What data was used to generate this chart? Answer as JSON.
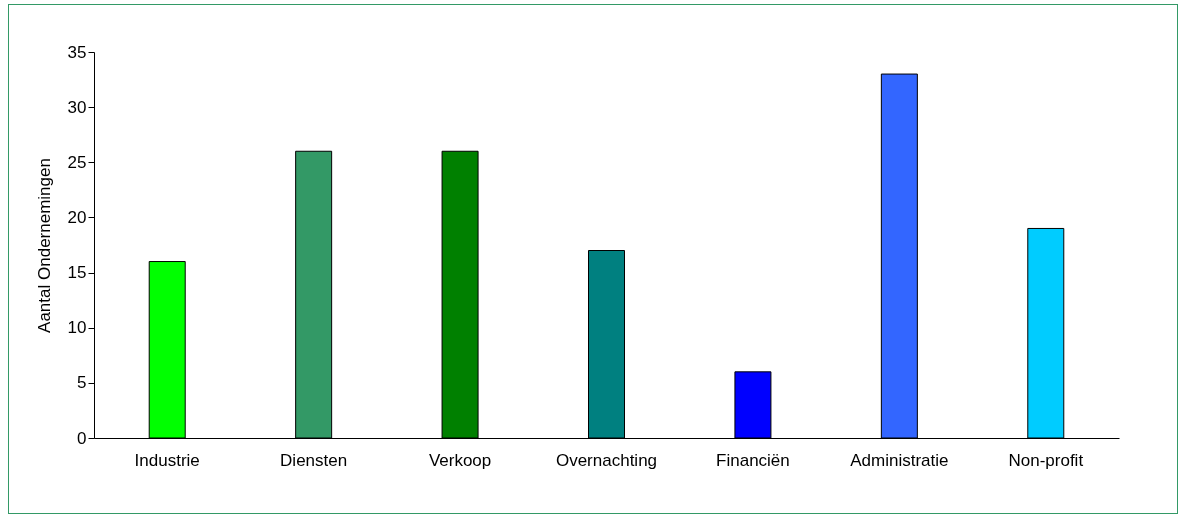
{
  "chart_data": {
    "type": "bar",
    "ylabel": "Aantal Ondernemingen",
    "categories": [
      "Industrie",
      "Diensten",
      "Verkoop",
      "Overnachting",
      "Financiën",
      "Administratie",
      "Non-profit"
    ],
    "values": [
      16,
      26,
      26,
      17,
      6,
      33,
      19
    ],
    "colors": [
      "#00ff00",
      "#339966",
      "#008000",
      "#008080",
      "#0000ff",
      "#3366ff",
      "#00ccff"
    ],
    "ylim": [
      0,
      35
    ],
    "yticks": [
      0,
      5,
      10,
      15,
      20,
      25,
      30,
      35
    ],
    "grid": false
  }
}
